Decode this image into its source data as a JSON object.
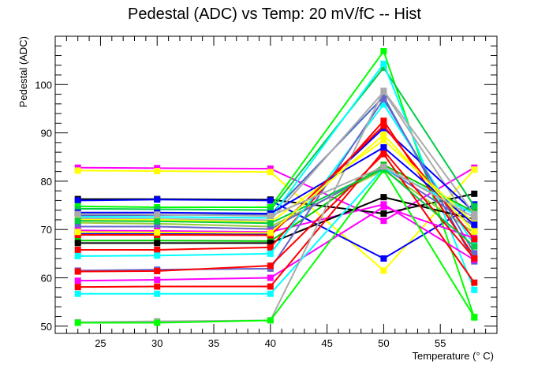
{
  "chart_data": {
    "type": "line",
    "title": "Pedestal (ADC) vs Temp: 20 mV/fC -- Hist",
    "xlabel": "Temperature (° C)",
    "ylabel": "Pedestal (ADC)",
    "xlim": [
      21,
      60
    ],
    "ylim": [
      48.5,
      110
    ],
    "x_ticks": [
      25,
      30,
      35,
      40,
      45,
      50,
      55
    ],
    "y_ticks": [
      50,
      60,
      70,
      80,
      90,
      100
    ],
    "grid": false,
    "legend": "none",
    "x": [
      23,
      30,
      40,
      50,
      58
    ],
    "series": [
      {
        "color": "#ff00ff",
        "values": [
          82.8,
          82.7,
          82.6,
          71.8,
          82.8
        ]
      },
      {
        "color": "#ffff00",
        "values": [
          82.2,
          82.1,
          81.9,
          61.5,
          82.4
        ]
      },
      {
        "color": "#000000",
        "values": [
          76.3,
          76.3,
          76.2,
          73.3,
          77.4
        ]
      },
      {
        "color": "#0000ff",
        "values": [
          76.0,
          76.2,
          76.0,
          64.0,
          75.2
        ]
      },
      {
        "color": "#00ff00",
        "values": [
          74.8,
          74.6,
          74.6,
          106.9,
          51.8
        ]
      },
      {
        "color": "#00cc44",
        "values": [
          74.3,
          74.2,
          74.0,
          103.5,
          74.8
        ]
      },
      {
        "color": "#4466cc",
        "values": [
          72.9,
          73.0,
          73.1,
          97.5,
          63.4
        ]
      },
      {
        "color": "#00ffff",
        "values": [
          72.6,
          72.6,
          72.4,
          104.3,
          57.5
        ]
      },
      {
        "color": "#aaaaaa",
        "values": [
          72.3,
          72.2,
          71.9,
          98.5,
          70.2
        ]
      },
      {
        "color": "#99cc33",
        "values": [
          71.4,
          71.2,
          70.6,
          82.3,
          69.3
        ]
      },
      {
        "color": "#6666cc",
        "values": [
          70.6,
          70.6,
          70.1,
          82.8,
          70.7
        ]
      },
      {
        "color": "#ff00ff",
        "values": [
          69.8,
          69.7,
          69.5,
          75.2,
          63.7
        ]
      },
      {
        "color": "#0000ff",
        "values": [
          69.1,
          69.1,
          69.0,
          91.0,
          73.6
        ]
      },
      {
        "color": "#00cc00",
        "values": [
          67.7,
          67.7,
          67.6,
          83.4,
          73.6
        ]
      },
      {
        "color": "#000000",
        "values": [
          67.2,
          67.2,
          67.2,
          76.7,
          72.1
        ]
      },
      {
        "color": "#ff0000",
        "values": [
          65.8,
          65.8,
          66.3,
          92.5,
          64.4
        ]
      },
      {
        "color": "#00ffff",
        "values": [
          64.5,
          64.6,
          65.0,
          95.9,
          66.8
        ]
      },
      {
        "color": "#6666cc",
        "values": [
          61.5,
          61.7,
          61.9,
          97.0,
          65.1
        ]
      },
      {
        "color": "#ff0000",
        "values": [
          61.3,
          61.4,
          62.5,
          85.6,
          59.0
        ]
      },
      {
        "color": "#ff00ff",
        "values": [
          59.4,
          59.6,
          60.0,
          74.7,
          68.2
        ]
      },
      {
        "color": "#ff0000",
        "values": [
          58.1,
          58.2,
          58.2,
          86.3,
          64.0
        ]
      },
      {
        "color": "#00ffff",
        "values": [
          56.7,
          56.7,
          56.7,
          82.7,
          73.2
        ]
      },
      {
        "color": "#aaaaaa",
        "values": [
          50.8,
          51.0,
          51.2,
          98.7,
          73.2
        ]
      },
      {
        "color": "#00ff00",
        "values": [
          50.7,
          50.7,
          51.2,
          82.3,
          51.9
        ]
      },
      {
        "color": "#ffff00",
        "values": [
          72.0,
          72.0,
          71.5,
          88.5,
          71.3
        ]
      },
      {
        "color": "#0000ff",
        "values": [
          73.5,
          73.5,
          73.3,
          87.0,
          71.0
        ]
      },
      {
        "color": "#00cc44",
        "values": [
          71.8,
          71.7,
          71.3,
          82.6,
          66.5
        ]
      },
      {
        "color": "#ff0000",
        "values": [
          68.9,
          68.9,
          68.8,
          91.5,
          68.0
        ]
      },
      {
        "color": "#ffff00",
        "values": [
          69.5,
          69.4,
          69.3,
          89.6,
          69.6
        ]
      },
      {
        "color": "#aaaaaa",
        "values": [
          73.2,
          73.1,
          72.8,
          83.0,
          72.5
        ]
      }
    ]
  }
}
